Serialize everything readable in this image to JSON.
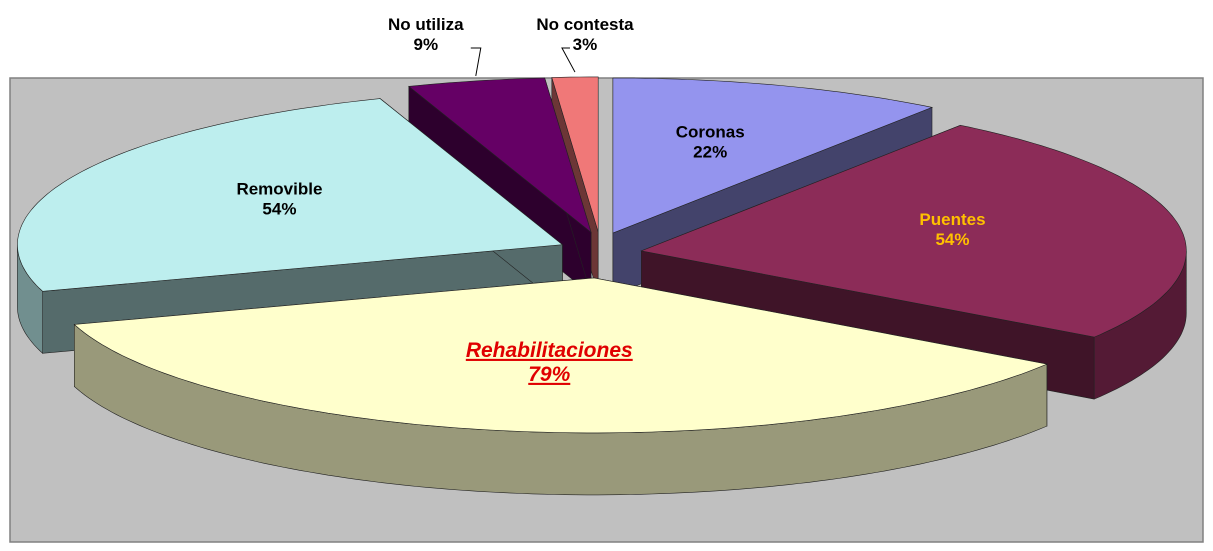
{
  "chart_data": {
    "type": "pie",
    "categories": [
      "Coronas",
      "Puentes",
      "Rehabilitaciones",
      "Removible",
      "No utiliza",
      "No contesta"
    ],
    "values": [
      22,
      54,
      79,
      54,
      9,
      3
    ],
    "value_labels": [
      "22%",
      "54%",
      "79%",
      "54%",
      "9%",
      "3%"
    ],
    "colors": [
      "#9494ee",
      "#8c2c58",
      "#ffffcc",
      "#bdeeee",
      "#650065",
      "#f07878"
    ],
    "label_colors": [
      "#000000",
      "#ffc000",
      "#e00000",
      "#000000",
      "#000000",
      "#000000"
    ],
    "emphasis": [
      false,
      false,
      true,
      false,
      false,
      false
    ]
  }
}
